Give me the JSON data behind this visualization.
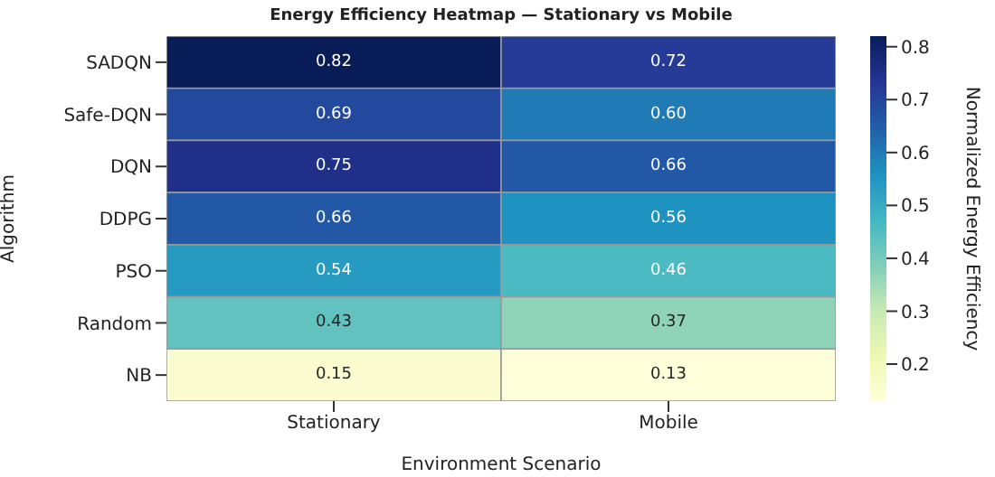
{
  "chart_data": {
    "type": "heatmap",
    "title": "Energy Efficiency Heatmap — Stationary vs Mobile",
    "xlabel": "Environment Scenario",
    "ylabel": "Algorithm",
    "clabel": "Normalized Energy Efficiency",
    "categories": [
      "Stationary",
      "Mobile"
    ],
    "y_categories": [
      "SADQN",
      "Safe-DQN",
      "DQN",
      "DDPG",
      "PSO",
      "Random",
      "NB"
    ],
    "cells": [
      [
        0.82,
        0.72
      ],
      [
        0.69,
        0.6
      ],
      [
        0.75,
        0.66
      ],
      [
        0.66,
        0.56
      ],
      [
        0.54,
        0.46
      ],
      [
        0.43,
        0.37
      ],
      [
        0.15,
        0.13
      ]
    ],
    "cell_labels": [
      [
        "0.82",
        "0.72"
      ],
      [
        "0.69",
        "0.60"
      ],
      [
        "0.75",
        "0.66"
      ],
      [
        "0.66",
        "0.56"
      ],
      [
        "0.54",
        "0.46"
      ],
      [
        "0.43",
        "0.37"
      ],
      [
        "0.15",
        "0.13"
      ]
    ],
    "clim": [
      0.13,
      0.82
    ],
    "cticks": [
      0.2,
      0.3,
      0.4,
      0.5,
      0.6,
      0.7,
      0.8
    ]
  }
}
